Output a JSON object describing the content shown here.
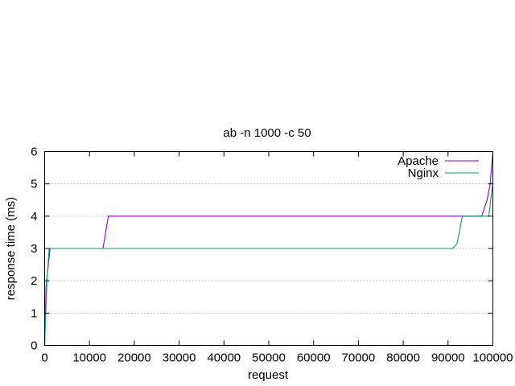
{
  "chart_data": {
    "type": "line",
    "title": "ab -n 1000 -c 50",
    "xlabel": "request",
    "ylabel": "response time (ms)",
    "xlim": [
      0,
      100000
    ],
    "ylim": [
      0,
      6
    ],
    "x_ticks": [
      0,
      10000,
      20000,
      30000,
      40000,
      50000,
      60000,
      70000,
      80000,
      90000,
      100000
    ],
    "y_ticks": [
      0,
      1,
      2,
      3,
      4,
      5,
      6
    ],
    "grid": "horizontal dotted",
    "legend_position": "top-right",
    "series": [
      {
        "name": "Apache",
        "color": "#9400d3",
        "points": [
          [
            0,
            0
          ],
          [
            300,
            1.8
          ],
          [
            1200,
            3
          ],
          [
            13000,
            3
          ],
          [
            14200,
            4
          ],
          [
            97500,
            4
          ],
          [
            98700,
            4.5
          ],
          [
            99400,
            5
          ],
          [
            100000,
            6
          ]
        ]
      },
      {
        "name": "Nginx",
        "color": "#009e73",
        "points": [
          [
            0,
            0
          ],
          [
            500,
            2
          ],
          [
            1000,
            3
          ],
          [
            91000,
            3
          ],
          [
            92000,
            3.15
          ],
          [
            93200,
            4
          ],
          [
            99100,
            4
          ],
          [
            99600,
            4.6
          ],
          [
            100000,
            5
          ]
        ]
      }
    ]
  }
}
